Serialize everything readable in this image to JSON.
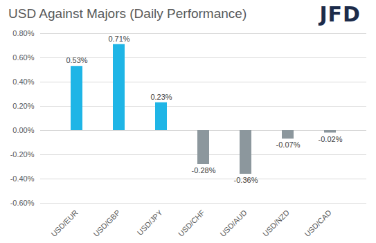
{
  "chart_data": {
    "type": "bar",
    "title": "USD Against Majors (Daily Performance)",
    "logo": "JFD",
    "categories": [
      "USD/EUR",
      "USD/GBP",
      "USD/JPY",
      "USD/CHF",
      "USD/AUD",
      "USD/NZD",
      "USD/CAD"
    ],
    "values": [
      0.53,
      0.71,
      0.23,
      -0.28,
      -0.36,
      -0.07,
      -0.02
    ],
    "value_labels": [
      "0.53%",
      "0.71%",
      "0.23%",
      "-0.28%",
      "-0.36%",
      "-0.07%",
      "-0.02%"
    ],
    "colors": [
      "#1fb5e6",
      "#1fb5e6",
      "#1fb5e6",
      "#8c979d",
      "#8c979d",
      "#8c979d",
      "#8c979d"
    ],
    "ylim": [
      -0.6,
      0.8
    ],
    "yticks": [
      {
        "value": -0.6,
        "label": "-0.60%"
      },
      {
        "value": -0.4,
        "label": "-0.40%"
      },
      {
        "value": -0.2,
        "label": "-0.20%"
      },
      {
        "value": 0,
        "label": "0.00%"
      },
      {
        "value": 0.2,
        "label": "0.20%"
      },
      {
        "value": 0.4,
        "label": "0.40%"
      },
      {
        "value": 0.6,
        "label": "0.60%"
      },
      {
        "value": 0.8,
        "label": "0.80%"
      }
    ],
    "grid": true,
    "data_labels": true
  }
}
